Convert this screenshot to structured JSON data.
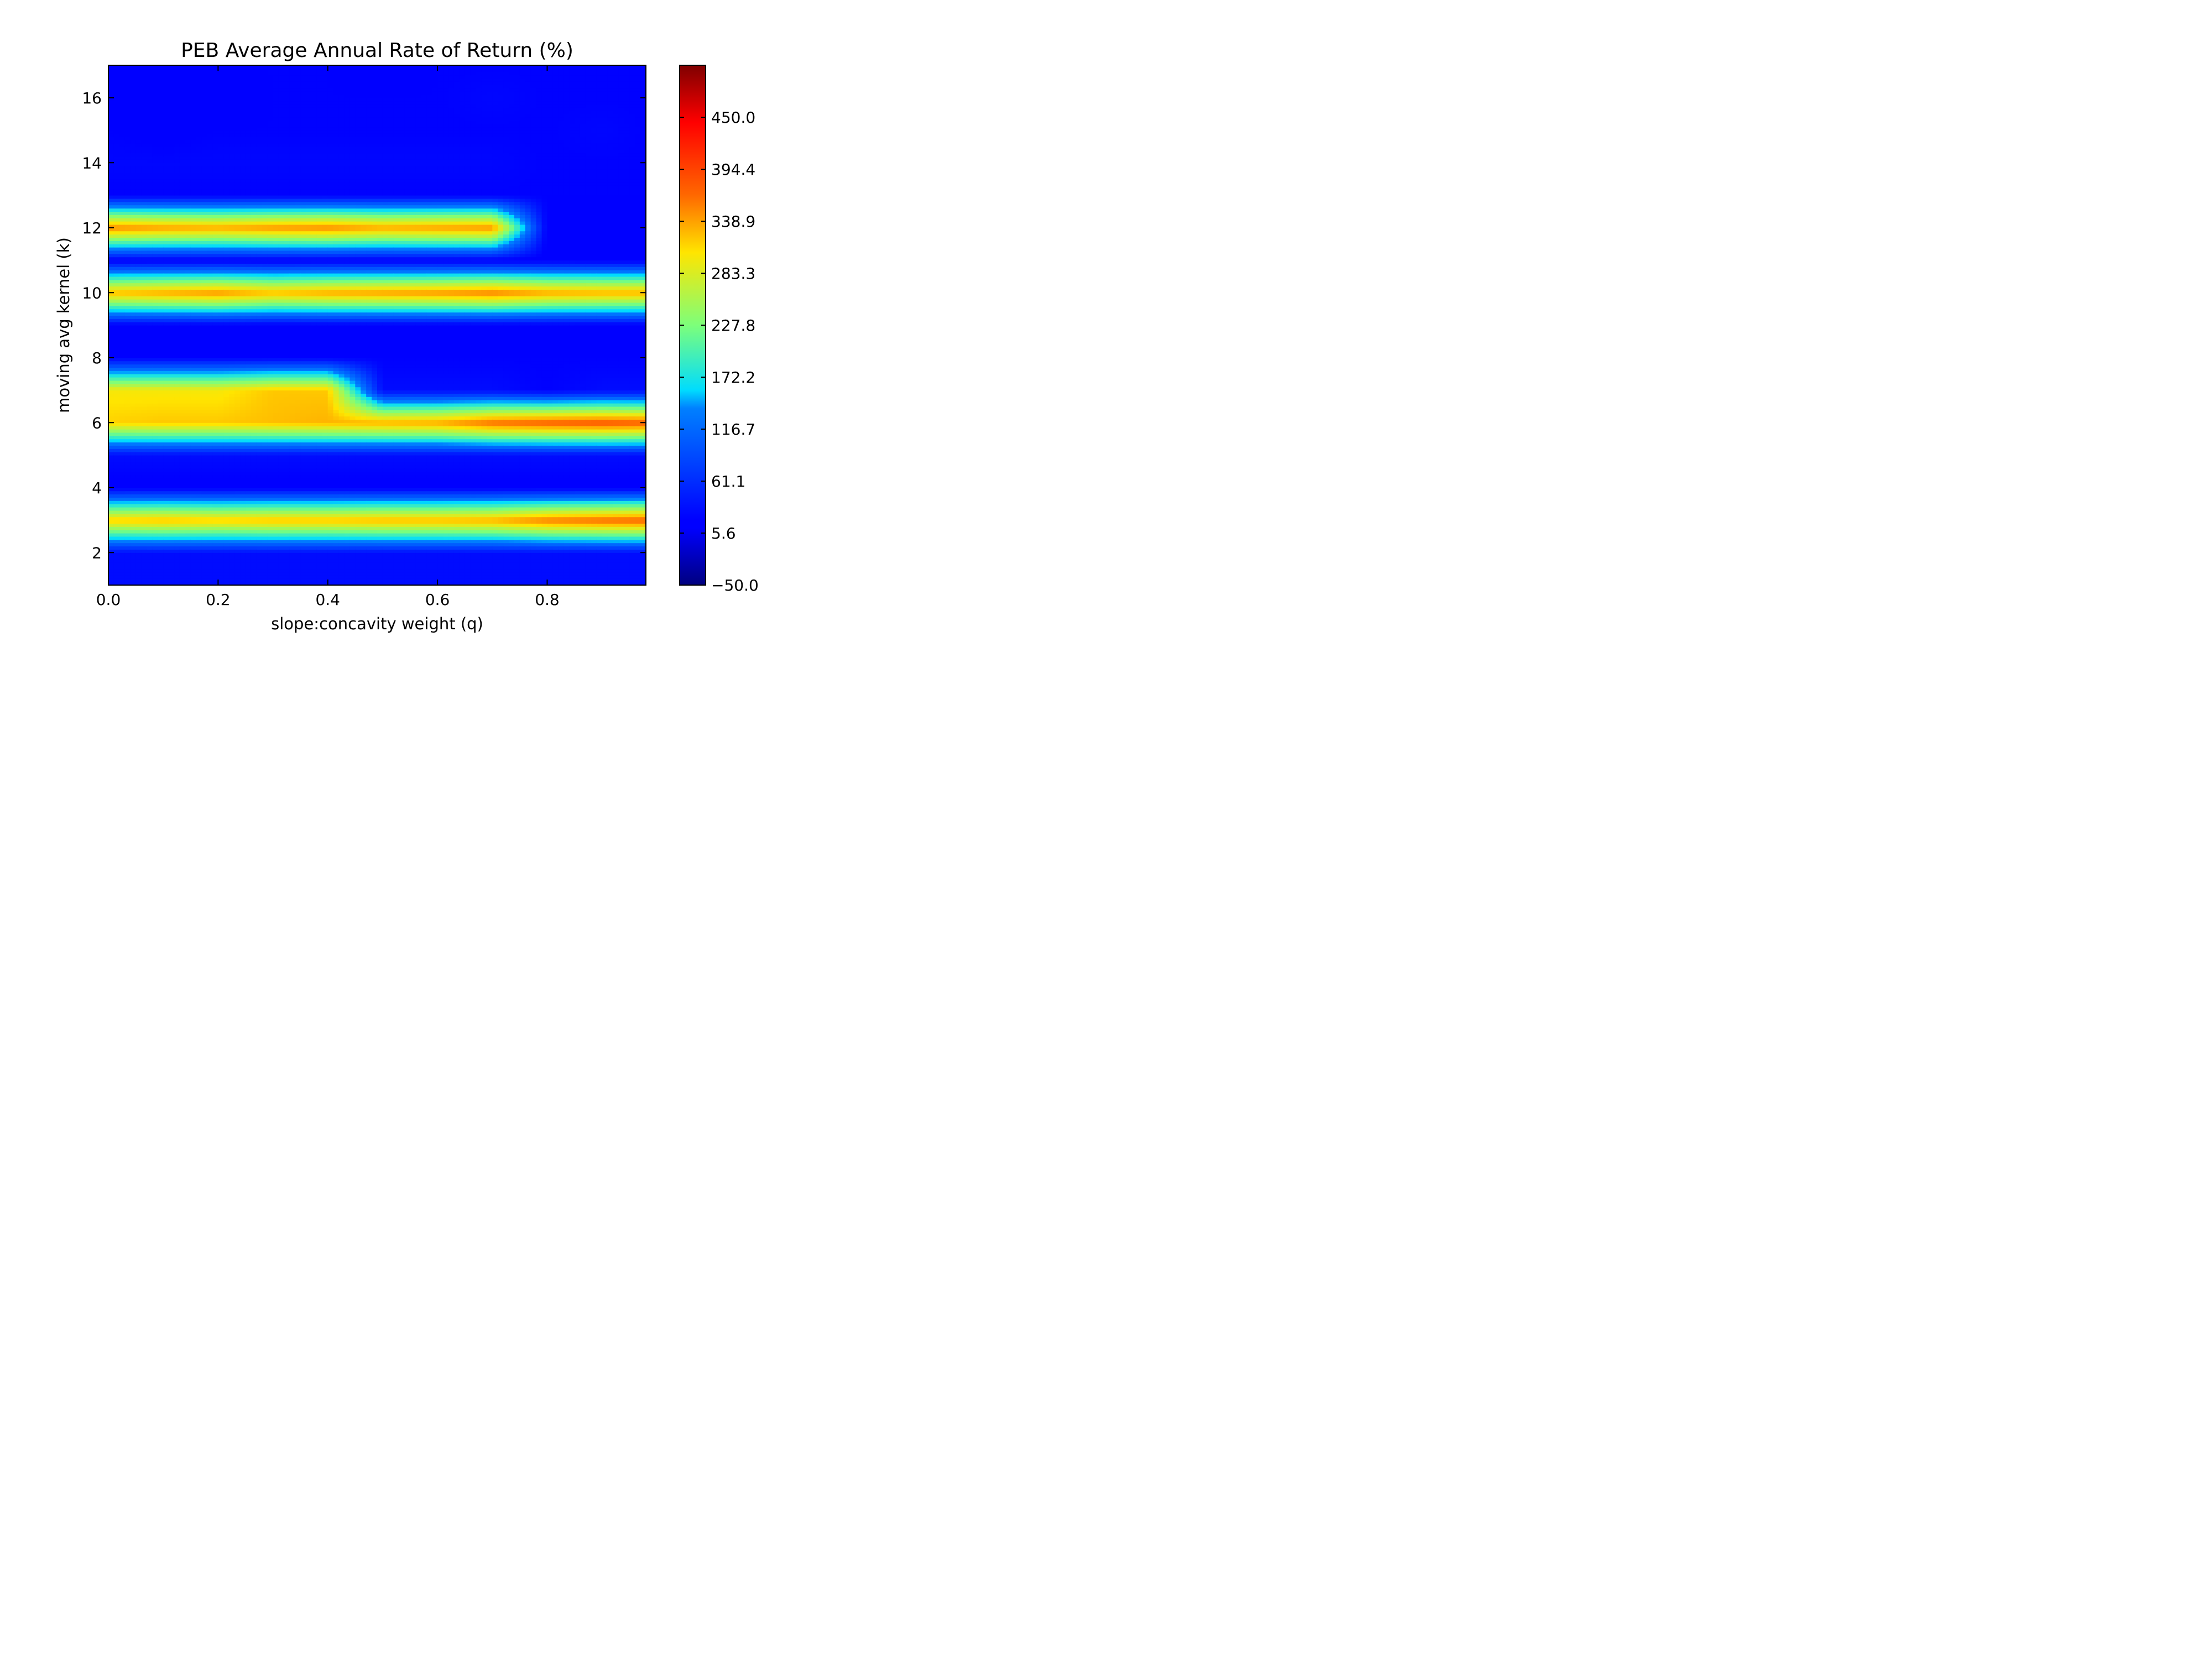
{
  "chart_data": {
    "type": "heatmap",
    "title": "PEB Average Annual Rate of Return (%)",
    "xlabel": "slope:concavity weight (q)",
    "ylabel": "moving avg kernel (k)",
    "xlim": [
      0.0,
      0.98
    ],
    "ylim": [
      1,
      17
    ],
    "xticks": [
      0.0,
      0.2,
      0.4,
      0.6,
      0.8
    ],
    "xtick_labels": [
      "0.0",
      "0.2",
      "0.4",
      "0.6",
      "0.8"
    ],
    "yticks": [
      2,
      4,
      6,
      8,
      10,
      12,
      14,
      16
    ],
    "ytick_labels": [
      "2",
      "4",
      "6",
      "8",
      "10",
      "12",
      "14",
      "16"
    ],
    "colormap": "jet",
    "colorbar": {
      "range": [
        -50.0,
        505.6
      ],
      "ticks": [
        -50.0,
        5.6,
        61.1,
        116.7,
        172.2,
        227.8,
        283.3,
        338.9,
        394.4,
        450.0
      ],
      "tick_labels": [
        "−50.0",
        "5.6",
        "61.1",
        "116.7",
        "172.2",
        "227.8",
        "283.3",
        "338.9",
        "394.4",
        "450.0"
      ]
    },
    "grid": false,
    "q_values": [
      0.0,
      0.1,
      0.2,
      0.3,
      0.4,
      0.5,
      0.6,
      0.7,
      0.8,
      0.9,
      0.98
    ],
    "k_values": [
      1,
      2,
      3,
      4,
      5,
      6,
      7,
      8,
      9,
      10,
      11,
      12,
      13,
      14,
      15,
      16,
      17
    ],
    "rows": [
      {
        "k": 1,
        "values": [
          30,
          30,
          30,
          30,
          30,
          30,
          30,
          30,
          30,
          30,
          30
        ]
      },
      {
        "k": 2,
        "values": [
          30,
          30,
          30,
          30,
          30,
          30,
          30,
          30,
          30,
          30,
          30
        ]
      },
      {
        "k": 3,
        "values": [
          320,
          325,
          320,
          325,
          325,
          330,
          330,
          335,
          360,
          370,
          375
        ]
      },
      {
        "k": 4,
        "values": [
          15,
          15,
          15,
          15,
          15,
          15,
          15,
          15,
          15,
          15,
          15
        ]
      },
      {
        "k": 5,
        "values": [
          30,
          30,
          30,
          30,
          30,
          30,
          30,
          30,
          30,
          30,
          30
        ]
      },
      {
        "k": 6,
        "values": [
          315,
          320,
          320,
          325,
          330,
          335,
          340,
          370,
          380,
          385,
          380
        ]
      },
      {
        "k": 7,
        "values": [
          300,
          300,
          300,
          320,
          320,
          30,
          30,
          30,
          20,
          30,
          30
        ]
      },
      {
        "k": 8,
        "values": [
          20,
          20,
          20,
          20,
          20,
          20,
          20,
          20,
          20,
          20,
          20
        ]
      },
      {
        "k": 9,
        "values": [
          15,
          15,
          15,
          15,
          15,
          15,
          15,
          15,
          15,
          15,
          15
        ]
      },
      {
        "k": 10,
        "values": [
          330,
          340,
          350,
          330,
          340,
          345,
          350,
          360,
          340,
          335,
          335
        ]
      },
      {
        "k": 11,
        "values": [
          15,
          15,
          15,
          15,
          15,
          15,
          15,
          15,
          15,
          15,
          15
        ]
      },
      {
        "k": 12,
        "values": [
          355,
          345,
          340,
          350,
          355,
          340,
          345,
          350,
          15,
          15,
          15
        ]
      },
      {
        "k": 13,
        "values": [
          20,
          20,
          20,
          20,
          20,
          20,
          20,
          20,
          20,
          20,
          20
        ]
      },
      {
        "k": 14,
        "values": [
          25,
          25,
          25,
          25,
          25,
          25,
          25,
          25,
          20,
          20,
          20
        ]
      },
      {
        "k": 15,
        "values": [
          20,
          15,
          20,
          20,
          20,
          20,
          20,
          20,
          20,
          25,
          20
        ]
      },
      {
        "k": 16,
        "values": [
          10,
          15,
          15,
          20,
          20,
          20,
          20,
          25,
          20,
          20,
          20
        ]
      },
      {
        "k": 17,
        "values": [
          15,
          15,
          20,
          20,
          20,
          15,
          20,
          20,
          20,
          20,
          20
        ]
      }
    ]
  }
}
